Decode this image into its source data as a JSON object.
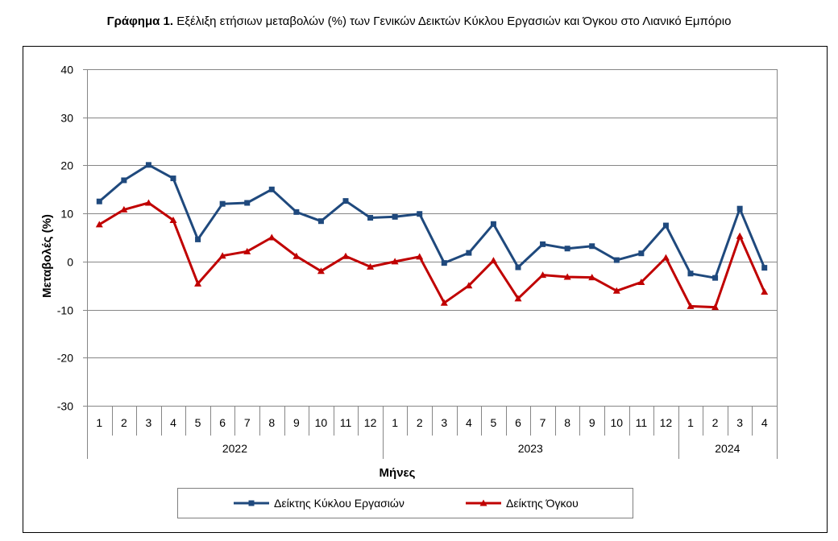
{
  "title": {
    "prefix": "Γράφημα 1.",
    "text": " Εξέλιξη ετήσιων μεταβολών (%) των Γενικών Δεικτών Κύκλου Εργασιών και Όγκου στο Λιανικό Εμπόριο"
  },
  "chart_data": {
    "type": "line",
    "ylabel": "Μεταβολές  (%)",
    "xlabel": "Μήνες",
    "ylim": [
      -30,
      40
    ],
    "yticks": [
      -30,
      -20,
      -10,
      0,
      10,
      20,
      30,
      40
    ],
    "grid": true,
    "legend_position": "bottom",
    "categories": [
      "1",
      "2",
      "3",
      "4",
      "5",
      "6",
      "7",
      "8",
      "9",
      "10",
      "11",
      "12",
      "1",
      "2",
      "3",
      "4",
      "5",
      "6",
      "7",
      "8",
      "9",
      "10",
      "11",
      "12",
      "1",
      "2",
      "3",
      "4"
    ],
    "groups": [
      {
        "label": "2022",
        "count": 12
      },
      {
        "label": "2023",
        "count": 12
      },
      {
        "label": "2024",
        "count": 4
      }
    ],
    "series": [
      {
        "name": "Δείκτης Κύκλου Εργασιών",
        "color": "#1F497D",
        "marker": "square",
        "values": [
          12.5,
          16.9,
          20.1,
          17.3,
          4.6,
          12.0,
          12.2,
          15.0,
          10.3,
          8.4,
          12.6,
          9.1,
          9.3,
          9.9,
          -0.3,
          1.8,
          7.8,
          -1.2,
          3.6,
          2.7,
          3.2,
          0.3,
          1.7,
          7.5,
          -2.5,
          -3.4,
          11.0,
          -1.3
        ]
      },
      {
        "name": "Δείκτης Όγκου",
        "color": "#C00000",
        "marker": "triangle",
        "values": [
          7.7,
          10.8,
          12.2,
          8.6,
          -4.6,
          1.2,
          2.1,
          5.0,
          1.1,
          -2.0,
          1.1,
          -1.1,
          0.0,
          1.0,
          -8.6,
          -5.0,
          0.2,
          -7.7,
          -2.8,
          -3.2,
          -3.3,
          -6.1,
          -4.3,
          0.8,
          -9.3,
          -9.5,
          5.3,
          -6.3
        ]
      }
    ]
  }
}
